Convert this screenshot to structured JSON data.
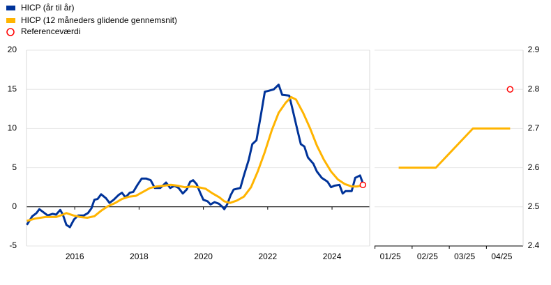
{
  "chart_data": [
    {
      "type": "line",
      "xlim": [
        2014.5,
        2025.17
      ],
      "ylim": [
        -5,
        20
      ],
      "xticks": [
        2016,
        2018,
        2020,
        2022,
        2024
      ],
      "yticks": [
        -5,
        0,
        5,
        10,
        15,
        20
      ],
      "grid": true,
      "series": [
        {
          "name": "HICP (år til år)",
          "color": "#003399",
          "style": "line",
          "x": [
            2014.51,
            2014.68,
            2014.81,
            2014.9,
            2015.03,
            2015.16,
            2015.31,
            2015.42,
            2015.55,
            2015.63,
            2015.74,
            2015.85,
            2015.98,
            2016.11,
            2016.28,
            2016.41,
            2016.52,
            2016.61,
            2016.71,
            2016.82,
            2016.97,
            2017.08,
            2017.21,
            2017.36,
            2017.47,
            2017.58,
            2017.71,
            2017.82,
            2017.95,
            2018.08,
            2018.23,
            2018.36,
            2018.49,
            2018.66,
            2018.84,
            2018.97,
            2019.1,
            2019.23,
            2019.36,
            2019.48,
            2019.59,
            2019.68,
            2019.79,
            2019.9,
            2020.0,
            2020.13,
            2020.22,
            2020.35,
            2020.48,
            2020.59,
            2020.65,
            2020.74,
            2020.85,
            2020.94,
            2021.04,
            2021.15,
            2021.26,
            2021.41,
            2021.52,
            2021.65,
            2021.8,
            2021.91,
            2022.02,
            2022.19,
            2022.34,
            2022.45,
            2022.67,
            2022.77,
            2022.93,
            2023.03,
            2023.14,
            2023.25,
            2023.42,
            2023.53,
            2023.68,
            2023.86,
            2023.97,
            2024.07,
            2024.23,
            2024.33,
            2024.42,
            2024.61,
            2024.72,
            2024.87,
            2024.96
          ],
          "values": [
            -2.3,
            -1.2,
            -0.8,
            -0.3,
            -0.7,
            -1.1,
            -0.9,
            -1.0,
            -0.4,
            -1.0,
            -2.3,
            -2.6,
            -1.6,
            -1.1,
            -1.1,
            -0.8,
            -0.2,
            0.9,
            1.0,
            1.6,
            1.1,
            0.5,
            0.9,
            1.5,
            1.8,
            1.2,
            1.8,
            1.9,
            2.8,
            3.6,
            3.6,
            3.4,
            2.4,
            2.4,
            3.1,
            2.4,
            2.7,
            2.4,
            1.7,
            2.2,
            3.2,
            3.4,
            2.9,
            1.8,
            0.9,
            0.7,
            0.3,
            0.6,
            0.4,
            0.0,
            -0.3,
            0.3,
            1.5,
            2.2,
            2.3,
            2.4,
            4.0,
            6.0,
            8.0,
            8.5,
            12.0,
            14.7,
            14.8,
            15.0,
            15.6,
            14.3,
            14.2,
            12.5,
            9.7,
            8.0,
            7.7,
            6.3,
            5.5,
            4.5,
            3.7,
            3.2,
            2.5,
            2.7,
            2.8,
            1.7,
            2.0,
            2.0,
            3.7,
            4.0,
            3.0
          ]
        },
        {
          "name": "HICP (12 måneders glidende gennemsnit)",
          "color": "#ffb400",
          "style": "line",
          "x": [
            2014.51,
            2014.77,
            2015.09,
            2015.42,
            2015.63,
            2015.74,
            2015.96,
            2016.17,
            2016.39,
            2016.61,
            2016.82,
            2017.04,
            2017.26,
            2017.47,
            2017.69,
            2017.9,
            2018.12,
            2018.34,
            2018.55,
            2018.77,
            2018.99,
            2019.2,
            2019.42,
            2019.64,
            2019.85,
            2020.07,
            2020.29,
            2020.5,
            2020.65,
            2020.83,
            2021.04,
            2021.26,
            2021.48,
            2021.69,
            2021.91,
            2022.13,
            2022.34,
            2022.56,
            2022.73,
            2022.88,
            2023.1,
            2023.32,
            2023.53,
            2023.75,
            2023.97,
            2024.18,
            2024.4,
            2024.61,
            2024.77,
            2024.9
          ],
          "values": [
            -1.8,
            -1.5,
            -1.3,
            -1.3,
            -1.0,
            -0.8,
            -1.1,
            -1.3,
            -1.4,
            -1.2,
            -0.5,
            0.1,
            0.5,
            1.0,
            1.3,
            1.4,
            1.9,
            2.4,
            2.6,
            2.7,
            2.8,
            2.7,
            2.5,
            2.6,
            2.5,
            2.3,
            1.7,
            1.2,
            0.7,
            0.5,
            0.8,
            1.3,
            2.5,
            4.5,
            7.0,
            9.8,
            12.0,
            13.3,
            14.0,
            13.7,
            12.0,
            10.0,
            7.8,
            6.0,
            4.5,
            3.5,
            2.9,
            2.6,
            2.6,
            2.7
          ]
        },
        {
          "name": "Referenceværdi",
          "color": "#ff0000",
          "style": "marker",
          "x": [
            2024.96
          ],
          "values": [
            2.8
          ]
        }
      ]
    },
    {
      "type": "line",
      "categories": [
        "01/25",
        "02/25",
        "03/25",
        "04/25"
      ],
      "ylim": [
        2.4,
        2.9
      ],
      "yticks": [
        2.4,
        2.5,
        2.6,
        2.7,
        2.8,
        2.9
      ],
      "grid": true,
      "series": [
        {
          "color": "#ffb400",
          "style": "line",
          "values": [
            2.6,
            2.6,
            2.7,
            2.7
          ]
        },
        {
          "color": "#ff0000",
          "style": "marker",
          "values": [
            null,
            null,
            null,
            2.8
          ]
        }
      ]
    }
  ]
}
